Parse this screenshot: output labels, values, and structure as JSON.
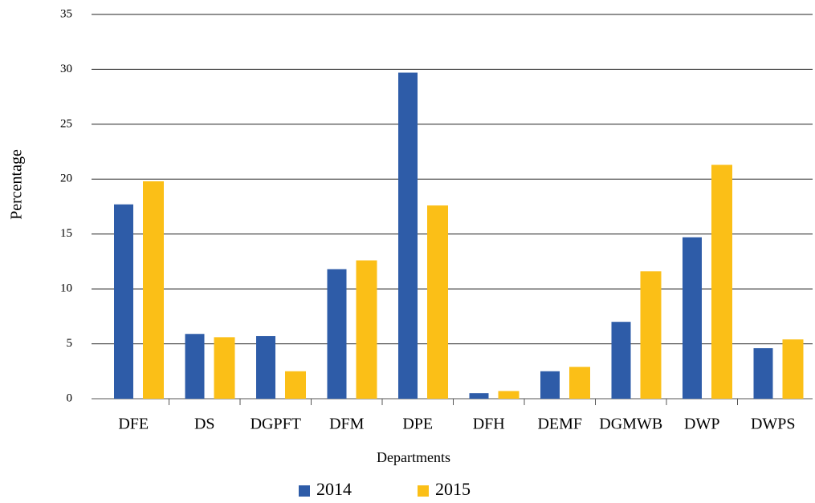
{
  "chart_data": {
    "type": "bar",
    "x_label": "Departments",
    "y_label": "Percentage",
    "categories": [
      "DFE",
      "DS",
      "DGPFT",
      "DFM",
      "DPE",
      "DFH",
      "DEMF",
      "DGMWB",
      "DWP",
      "DWPS"
    ],
    "series": [
      {
        "name": "2014",
        "color": "#2e5ca8",
        "values": [
          17.7,
          5.9,
          5.7,
          11.8,
          29.7,
          0.5,
          2.5,
          7.0,
          14.7,
          4.6
        ]
      },
      {
        "name": "2015",
        "color": "#fbbf17",
        "values": [
          19.8,
          5.6,
          2.5,
          12.6,
          17.6,
          0.7,
          2.9,
          11.6,
          21.3,
          5.4
        ]
      }
    ],
    "ylim": [
      0,
      35
    ],
    "yticks": [
      0,
      5,
      10,
      15,
      20,
      25,
      30,
      35
    ],
    "grid": true,
    "legend": "bottom"
  }
}
